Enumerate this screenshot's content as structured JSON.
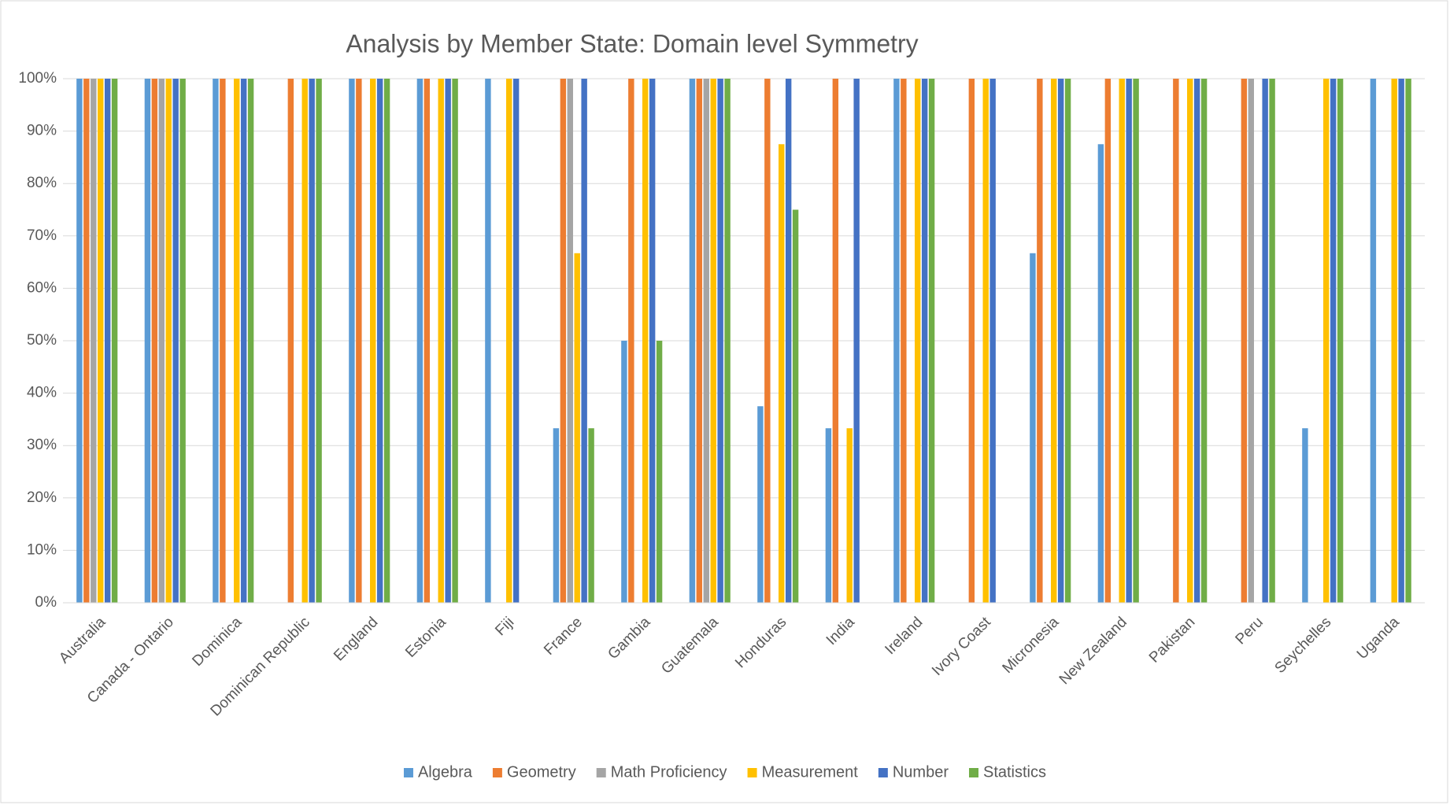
{
  "chart_data": {
    "type": "bar",
    "title": "Analysis by Member State: Domain level Symmetry",
    "categories": [
      "Australia",
      "Canada - Ontario",
      "Dominica",
      "Dominican Republic",
      "England",
      "Estonia",
      "Fiji",
      "France",
      "Gambia",
      "Guatemala",
      "Honduras",
      "India",
      "Ireland",
      "Ivory Coast",
      "Micronesia",
      "New Zealand",
      "Pakistan",
      "Peru",
      "Seychelles",
      "Uganda"
    ],
    "series": [
      {
        "name": "Algebra",
        "color": "#5b9bd5",
        "values": [
          100,
          100,
          100,
          null,
          100,
          100,
          100,
          33.3,
          50,
          100,
          37.5,
          33.3,
          100,
          null,
          66.7,
          87.5,
          null,
          null,
          33.3,
          100
        ]
      },
      {
        "name": "Geometry",
        "color": "#ed7d31",
        "values": [
          100,
          100,
          100,
          100,
          100,
          100,
          null,
          100,
          100,
          100,
          100,
          100,
          100,
          100,
          100,
          100,
          100,
          100,
          null,
          null
        ]
      },
      {
        "name": "Math Proficiency",
        "color": "#a5a5a5",
        "values": [
          100,
          100,
          null,
          null,
          null,
          null,
          null,
          100,
          null,
          100,
          null,
          null,
          null,
          null,
          null,
          null,
          null,
          100,
          null,
          null
        ]
      },
      {
        "name": "Measurement",
        "color": "#ffc000",
        "values": [
          100,
          100,
          100,
          100,
          100,
          100,
          100,
          66.7,
          100,
          100,
          87.5,
          33.3,
          100,
          100,
          100,
          100,
          100,
          null,
          100,
          100
        ]
      },
      {
        "name": "Number",
        "color": "#4472c4",
        "values": [
          100,
          100,
          100,
          100,
          100,
          100,
          100,
          100,
          100,
          100,
          100,
          100,
          100,
          100,
          100,
          100,
          100,
          100,
          100,
          100
        ]
      },
      {
        "name": "Statistics",
        "color": "#70ad47",
        "values": [
          100,
          100,
          100,
          100,
          100,
          100,
          null,
          33.3,
          50,
          100,
          75,
          null,
          100,
          null,
          100,
          100,
          100,
          100,
          100,
          100
        ]
      }
    ],
    "ylim": [
      0,
      100
    ],
    "yticks": [
      {
        "value": 0,
        "label": "0%"
      },
      {
        "value": 10,
        "label": "10%"
      },
      {
        "value": 20,
        "label": "20%"
      },
      {
        "value": 30,
        "label": "30%"
      },
      {
        "value": 40,
        "label": "40%"
      },
      {
        "value": 50,
        "label": "50%"
      },
      {
        "value": 60,
        "label": "60%"
      },
      {
        "value": 70,
        "label": "70%"
      },
      {
        "value": 80,
        "label": "80%"
      },
      {
        "value": 90,
        "label": "90%"
      },
      {
        "value": 100,
        "label": "100%"
      }
    ],
    "grid": true,
    "legend": "bottom"
  }
}
